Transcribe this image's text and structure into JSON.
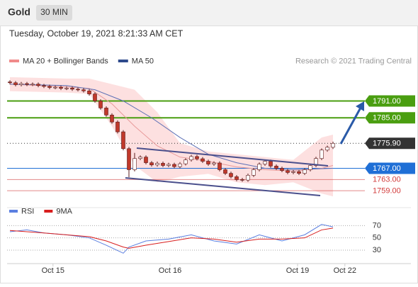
{
  "header": {
    "title": "Gold",
    "timeframe": "30 MIN",
    "timestamp": "Tuesday, October 19, 2021 8:21:33 AM CET"
  },
  "chart_data": [
    {
      "type": "candlestick",
      "legend": [
        {
          "name": "MA 20 + Bollinger Bands",
          "color": "#f08a8a"
        },
        {
          "name": "MA 50",
          "color": "#2e4a8c"
        }
      ],
      "credit": "Research © 2021 Trading Central",
      "xlim": [
        -0.5,
        63
      ],
      "ylim": [
        1755,
        1803
      ],
      "up_color": "#ffffff",
      "down_color": "#c0392b",
      "outline": "#5a1a1a",
      "x": [
        0,
        1,
        2,
        3,
        4,
        5,
        6,
        7,
        8,
        9,
        10,
        11,
        12,
        13,
        14,
        15,
        16,
        17,
        18,
        19,
        20,
        21,
        22,
        23,
        24,
        25,
        26,
        27,
        28,
        29,
        30,
        31,
        32,
        33,
        34,
        35,
        36,
        37,
        38,
        39,
        40,
        41,
        42,
        43,
        44,
        45,
        46,
        47,
        48,
        49,
        50,
        51,
        52,
        53,
        54,
        55,
        56,
        57
      ],
      "open": [
        1797.8,
        1797.5,
        1796.8,
        1797.2,
        1796.9,
        1797.0,
        1796.5,
        1796.2,
        1795.8,
        1795.9,
        1795.5,
        1795.6,
        1795.2,
        1795.0,
        1794.6,
        1793.5,
        1791.0,
        1788.5,
        1786.0,
        1783.5,
        1780.0,
        1774.0,
        1766.5,
        1770.5,
        1771.0,
        1769.0,
        1768.2,
        1768.8,
        1768.0,
        1768.4,
        1767.6,
        1768.6,
        1770.0,
        1771.2,
        1770.4,
        1769.5,
        1768.5,
        1768.9,
        1766.5,
        1765.2,
        1764.0,
        1763.0,
        1762.8,
        1764.5,
        1766.5,
        1768.5,
        1769.5,
        1767.8,
        1767.0,
        1766.2,
        1765.5,
        1765.8,
        1765.2,
        1766.5,
        1768.0,
        1770.5,
        1773.5,
        1774.5
      ],
      "high": [
        1798.4,
        1798.1,
        1797.8,
        1797.8,
        1797.6,
        1797.6,
        1797.1,
        1796.8,
        1796.5,
        1796.5,
        1796.2,
        1796.2,
        1795.8,
        1795.6,
        1795.2,
        1794.1,
        1791.6,
        1789.1,
        1786.6,
        1784.1,
        1780.6,
        1774.6,
        1772.5,
        1771.6,
        1771.6,
        1769.6,
        1769.4,
        1769.4,
        1769.0,
        1769.0,
        1769.2,
        1770.6,
        1771.8,
        1771.8,
        1771.0,
        1770.1,
        1769.5,
        1769.5,
        1767.1,
        1765.8,
        1764.6,
        1763.6,
        1765.1,
        1767.1,
        1769.1,
        1770.1,
        1770.1,
        1768.4,
        1767.6,
        1766.8,
        1766.4,
        1766.4,
        1767.1,
        1768.6,
        1771.1,
        1774.1,
        1775.1,
        1776.5
      ],
      "low": [
        1796.9,
        1796.2,
        1796.2,
        1796.3,
        1796.3,
        1795.9,
        1795.6,
        1795.2,
        1795.2,
        1794.9,
        1794.9,
        1794.6,
        1794.4,
        1794.0,
        1792.9,
        1790.4,
        1787.9,
        1785.4,
        1782.9,
        1779.4,
        1773.4,
        1763.8,
        1765.9,
        1769.9,
        1768.4,
        1767.6,
        1767.6,
        1767.4,
        1767.4,
        1767.0,
        1767.0,
        1768.0,
        1769.4,
        1769.8,
        1768.9,
        1767.9,
        1767.9,
        1765.9,
        1764.6,
        1763.4,
        1762.4,
        1762.2,
        1762.2,
        1763.9,
        1765.9,
        1767.9,
        1767.2,
        1766.4,
        1765.6,
        1764.9,
        1764.9,
        1764.6,
        1764.6,
        1765.9,
        1767.4,
        1769.9,
        1772.9,
        1773.9
      ],
      "close": [
        1797.5,
        1796.8,
        1797.2,
        1796.9,
        1797.0,
        1796.5,
        1796.2,
        1795.8,
        1795.9,
        1795.5,
        1795.6,
        1795.2,
        1795.0,
        1794.6,
        1793.5,
        1791.0,
        1788.5,
        1786.0,
        1783.5,
        1780.0,
        1774.0,
        1766.5,
        1770.5,
        1771.0,
        1769.0,
        1768.2,
        1768.8,
        1768.0,
        1768.4,
        1767.6,
        1768.6,
        1770.0,
        1771.2,
        1770.4,
        1769.5,
        1768.5,
        1768.9,
        1766.5,
        1765.2,
        1764.0,
        1763.0,
        1762.8,
        1764.5,
        1766.5,
        1768.5,
        1769.5,
        1767.8,
        1767.0,
        1766.2,
        1765.5,
        1765.8,
        1765.2,
        1766.5,
        1768.0,
        1770.5,
        1773.5,
        1774.5,
        1775.9
      ],
      "bands": {
        "color": "#fde0e0",
        "x": [
          0,
          10,
          14,
          18,
          22,
          26,
          30,
          35,
          40,
          45,
          50,
          55,
          57
        ],
        "upper": [
          1799.5,
          1799,
          1799,
          1797,
          1795,
          1787,
          1776,
          1773,
          1772,
          1771,
          1770,
          1778,
          1779
        ],
        "lower": [
          1794.5,
          1794,
          1793.5,
          1782,
          1768,
          1762,
          1764,
          1765,
          1762,
          1761,
          1762,
          1758,
          1757
        ]
      },
      "series": [
        {
          "name": "MA 20",
          "color": "#e89a9a",
          "x": [
            0,
            10,
            14,
            18,
            22,
            26,
            30,
            35,
            40,
            45,
            50,
            55,
            57
          ],
          "values": [
            1797,
            1796,
            1795.5,
            1790,
            1782,
            1775,
            1771,
            1769.5,
            1767.5,
            1766.5,
            1766,
            1767,
            1768
          ]
        },
        {
          "name": "MA 50",
          "color": "#5b6fb5",
          "x": [
            0,
            10,
            15,
            20,
            25,
            30,
            35,
            40,
            45,
            50,
            57
          ],
          "values": [
            1797,
            1796.5,
            1795,
            1791,
            1785,
            1778,
            1772,
            1769,
            1767,
            1766.5,
            1767
          ]
        }
      ],
      "levels": [
        {
          "value": 1791,
          "label": "1791.00",
          "color": "#4a9e10",
          "boxed": true
        },
        {
          "value": 1785,
          "label": "1785.00",
          "color": "#4a9e10",
          "boxed": true
        },
        {
          "value": 1775.9,
          "label": "1775.90",
          "color": "#333333",
          "boxed": true,
          "dotted": true
        },
        {
          "value": 1767,
          "label": "1767.00",
          "color": "#1f6fd6",
          "boxed": true
        },
        {
          "value": 1763,
          "label": "1763.00",
          "color": "#d23b3b",
          "boxed": false
        },
        {
          "value": 1759,
          "label": "1759.00",
          "color": "#d23b3b",
          "boxed": false
        }
      ]
    },
    {
      "type": "line",
      "xlim": [
        -0.5,
        63
      ],
      "ylim": [
        8,
        82
      ],
      "yticks": [
        70,
        50,
        30
      ],
      "xticks": [
        {
          "value": 7.6,
          "label": "Oct 15"
        },
        {
          "value": 28.25,
          "label": "Oct 16"
        },
        {
          "value": 50.75,
          "label": "Oct 19"
        },
        {
          "value": 59.1,
          "label": "Oct 22"
        }
      ],
      "series": [
        {
          "name": "RSI",
          "color": "#5b7fe0",
          "x": [
            0,
            3,
            6,
            10,
            14,
            17,
            20,
            21,
            24,
            28,
            32,
            36,
            40,
            44,
            48,
            52,
            55,
            57
          ],
          "values": [
            60,
            63,
            58,
            55,
            50,
            38,
            25,
            35,
            45,
            48,
            55,
            45,
            40,
            55,
            45,
            55,
            72,
            68
          ]
        },
        {
          "name": "9MA",
          "color": "#d81e1e",
          "x": [
            0,
            3,
            6,
            10,
            14,
            17,
            20,
            21,
            24,
            28,
            32,
            36,
            40,
            44,
            48,
            52,
            55,
            57
          ],
          "values": [
            62,
            60,
            58,
            55,
            52,
            45,
            35,
            33,
            38,
            44,
            50,
            48,
            43,
            48,
            48,
            50,
            63,
            66
          ]
        }
      ]
    }
  ]
}
